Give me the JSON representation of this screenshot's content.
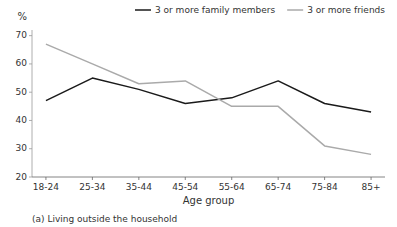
{
  "chart_data": {
    "type": "line",
    "categories": [
      "18-24",
      "25-34",
      "35-44",
      "45-54",
      "55-64",
      "65-74",
      "75-84",
      "85+"
    ],
    "series": [
      {
        "name": "3 or more family members",
        "color": "#1a1a1a",
        "values": [
          47,
          55,
          51,
          46,
          48,
          54,
          46,
          43
        ]
      },
      {
        "name": "3 or more friends",
        "color": "#aaaaaa",
        "values": [
          67,
          60,
          53,
          54,
          45,
          45,
          31,
          28
        ]
      }
    ],
    "xlabel": "Age group",
    "ylabel": "%",
    "ylim": [
      20,
      72
    ],
    "yticks": [
      20,
      30,
      40,
      50,
      60,
      70
    ],
    "annotations": [
      "(a) Living outside the household"
    ],
    "grid": false,
    "legend": "upper right"
  }
}
